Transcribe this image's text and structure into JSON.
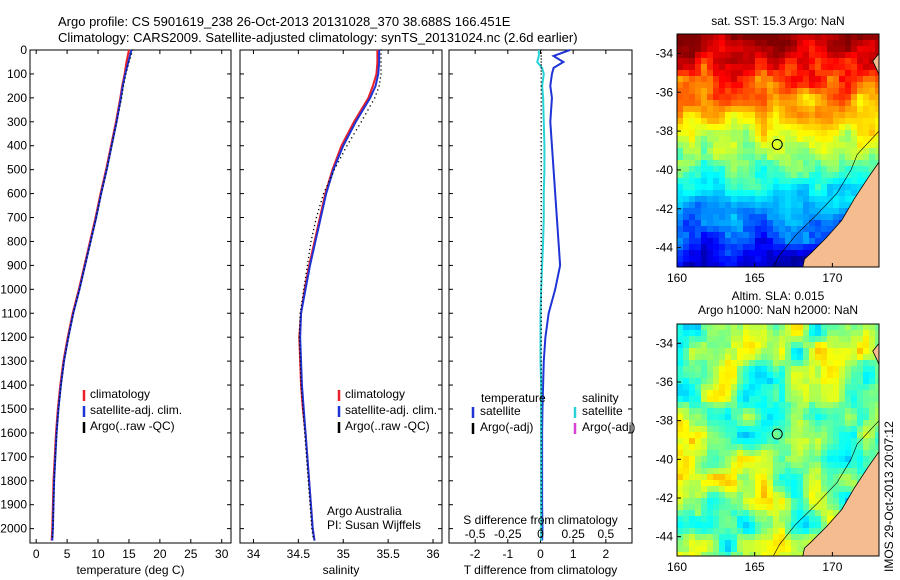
{
  "header": {
    "line1": "Argo profile: CS 5901619_238 26-Oct-2013 20131028_370 38.688S 166.451E",
    "line2": "Climatology: CARS2009. Satellite-adjusted climatology: synTS_20131024.nc (2.6d earlier)"
  },
  "side_text": "IMOS 29-Oct-2013 20:07:12",
  "colors": {
    "climatology": "#e8202a",
    "satellite": "#1f34d6",
    "argo": "#000000",
    "satellite_salinity": "#28d2d6",
    "argo_salinity_adj": "#d640d6",
    "land": "#f5bd8f"
  },
  "chart_data": [
    {
      "id": "temperature",
      "type": "line",
      "xlabel": "temperature (deg C)",
      "xlim": [
        -1,
        31.5
      ],
      "xticks": [
        0,
        5,
        10,
        15,
        20,
        25,
        30
      ],
      "xticklabels": [
        "0",
        "5",
        "10",
        "15",
        "20",
        "25",
        "30"
      ],
      "ylim": [
        0,
        2060
      ],
      "yticks": [
        0,
        100,
        200,
        300,
        400,
        500,
        600,
        700,
        800,
        900,
        1000,
        1100,
        1200,
        1300,
        1400,
        1500,
        1600,
        1700,
        1800,
        1900,
        2000
      ],
      "yticklabels": [
        "0",
        "100",
        "200",
        "300",
        "400",
        "500",
        "600",
        "700",
        "800",
        "900",
        "1000",
        "1100",
        "1200",
        "1300",
        "1400",
        "1500",
        "1600",
        "1700",
        "1800",
        "1900",
        "2000"
      ],
      "depth": [
        0,
        50,
        100,
        150,
        200,
        300,
        400,
        500,
        600,
        700,
        800,
        900,
        1000,
        1100,
        1200,
        1300,
        1400,
        1500,
        1600,
        1700,
        1800,
        1900,
        2000,
        2050
      ],
      "series": [
        {
          "name": "climatology",
          "color": "#e8202a",
          "style": "line",
          "values": [
            15.0,
            14.6,
            14.3,
            13.9,
            13.6,
            12.9,
            12.1,
            11.3,
            10.4,
            9.6,
            8.7,
            7.8,
            6.9,
            5.9,
            5.1,
            4.4,
            3.9,
            3.5,
            3.2,
            3.0,
            2.8,
            2.7,
            2.6,
            2.5
          ]
        },
        {
          "name": "satellite-adj. clim.",
          "color": "#1f34d6",
          "style": "line",
          "values": [
            15.4,
            14.9,
            14.4,
            14.0,
            13.7,
            13.0,
            12.2,
            11.4,
            10.5,
            9.7,
            8.8,
            7.9,
            7.0,
            6.0,
            5.2,
            4.5,
            4.0,
            3.6,
            3.3,
            3.1,
            2.9,
            2.8,
            2.7,
            2.6
          ]
        },
        {
          "name": "Argo(..raw -QC)",
          "color": "#000000",
          "style": "dots",
          "values": [
            15.6,
            15.0,
            14.5,
            14.1,
            13.8,
            13.0,
            12.2,
            11.4,
            10.5,
            9.7,
            8.8,
            7.9,
            7.0,
            6.0,
            5.2,
            4.5,
            4.0,
            3.6,
            3.3,
            3.1,
            2.9,
            2.8,
            2.7,
            2.6
          ]
        }
      ],
      "legend": [
        "climatology",
        "satellite-adj. clim.",
        "Argo(..raw -QC)"
      ]
    },
    {
      "id": "salinity",
      "type": "line",
      "xlabel": "salinity",
      "xlim": [
        33.85,
        36.1
      ],
      "xticks": [
        34,
        34.5,
        35,
        35.5,
        36
      ],
      "xticklabels": [
        "34",
        "34.5",
        "35",
        "35.5",
        "36"
      ],
      "ylim": [
        0,
        2060
      ],
      "depth": [
        0,
        50,
        100,
        150,
        200,
        300,
        400,
        500,
        600,
        700,
        800,
        900,
        1000,
        1100,
        1200,
        1300,
        1400,
        1500,
        1600,
        1700,
        1800,
        1900,
        2000,
        2050
      ],
      "series": [
        {
          "name": "climatology",
          "color": "#e8202a",
          "style": "line",
          "values": [
            35.38,
            35.38,
            35.37,
            35.33,
            35.28,
            35.12,
            34.98,
            34.88,
            34.8,
            34.74,
            34.68,
            34.62,
            34.57,
            34.53,
            34.51,
            34.52,
            34.53,
            34.55,
            34.58,
            34.6,
            34.62,
            34.64,
            34.66,
            34.68
          ]
        },
        {
          "name": "satellite-adj. clim.",
          "color": "#1f34d6",
          "style": "line",
          "values": [
            35.4,
            35.4,
            35.39,
            35.36,
            35.3,
            35.14,
            35.0,
            34.89,
            34.81,
            34.75,
            34.69,
            34.63,
            34.58,
            34.53,
            34.52,
            34.53,
            34.54,
            34.56,
            34.58,
            34.6,
            34.62,
            34.64,
            34.66,
            34.68
          ]
        },
        {
          "name": "Argo(..raw -QC)",
          "color": "#000000",
          "style": "dots",
          "values": [
            35.42,
            35.42,
            35.42,
            35.4,
            35.35,
            35.2,
            35.04,
            34.9,
            34.78,
            34.7,
            34.64,
            34.6,
            34.56,
            34.52,
            34.51,
            34.52,
            34.53,
            34.55,
            34.57,
            34.59,
            34.61,
            34.63,
            34.65,
            34.67
          ]
        }
      ],
      "legend": [
        "climatology",
        "satellite-adj. clim.",
        "Argo(..raw -QC)"
      ],
      "annotation": [
        "Argo Australia",
        "PI: Susan Wijffels"
      ]
    },
    {
      "id": "difference",
      "type": "line",
      "xlabel": "T difference from climatology",
      "top_axis_title": "S difference from climatology",
      "xlim": [
        -2.8,
        2.8
      ],
      "xticks": [
        -2,
        -1,
        0,
        1,
        2
      ],
      "xticklabels": [
        "-2",
        "-1",
        "0",
        "1",
        "2"
      ],
      "top_xticks": [
        -2,
        -1,
        0,
        1,
        2
      ],
      "top_xticklabels": [
        "-0.5",
        "-0.25",
        "0",
        "0.25",
        "0.5"
      ],
      "ylim": [
        0,
        2060
      ],
      "depth": [
        0,
        25,
        50,
        75,
        100,
        150,
        200,
        300,
        400,
        500,
        600,
        700,
        800,
        900,
        1000,
        1100,
        1200,
        1300,
        1400,
        1500,
        1600,
        1700,
        1800,
        1900,
        2000,
        2050
      ],
      "series": [
        {
          "name": "temperature satellite",
          "color": "#1f34d6",
          "style": "line",
          "values": [
            0.9,
            0.4,
            0.7,
            0.4,
            0.35,
            0.3,
            0.35,
            0.3,
            0.35,
            0.4,
            0.45,
            0.5,
            0.55,
            0.6,
            0.45,
            0.25,
            0.15,
            0.1,
            0.08,
            0.06,
            0.05,
            0.05,
            0.05,
            0.05,
            0.06,
            0.05
          ]
        },
        {
          "name": "salinity satellite",
          "color": "#28d2d6",
          "style": "line",
          "values": [
            -0.05,
            -0.05,
            -0.1,
            0.05,
            0.1,
            0.05,
            0.08,
            0.1,
            0.12,
            0.12,
            0.1,
            0.1,
            0.08,
            0.05,
            0.02,
            0.0,
            0.0,
            0.0,
            0.02,
            0.02,
            0.02,
            0.02,
            0.02,
            0.02,
            0.02,
            0.02
          ]
        },
        {
          "name": "Argo(-adj)",
          "color": "#000000",
          "style": "dots",
          "values": [
            0.02,
            0.02,
            0.02,
            0.02,
            0.02,
            0.02,
            0.02,
            0.02,
            0.02,
            0.02,
            0.02,
            0.02,
            0.02,
            0.02,
            0.02,
            0.02,
            0.02,
            0.02,
            0.02,
            0.02,
            0.02,
            0.02,
            0.02,
            0.02,
            0.02,
            0.02
          ]
        }
      ],
      "legend_titles": [
        "temperature",
        "salinity"
      ],
      "legend_temperature": [
        "satellite",
        "Argo(-adj)"
      ],
      "legend_salinity": [
        "satellite",
        "Argo(-adj)"
      ]
    },
    {
      "id": "sst_map",
      "type": "heatmap",
      "title": "sat. SST: 15.3 Argo: NaN",
      "xlim": [
        160,
        173
      ],
      "ylim": [
        -45,
        -33
      ],
      "xticks": [
        160,
        165,
        170
      ],
      "xticklabels": [
        "160",
        "165",
        "170"
      ],
      "yticks": [
        -34,
        -36,
        -38,
        -40,
        -42,
        -44
      ],
      "yticklabels": [
        "-34",
        "-36",
        "-38",
        "-40",
        "-42",
        "-44"
      ],
      "marker": {
        "lon": 166.45,
        "lat": -38.69
      }
    },
    {
      "id": "sla_map",
      "type": "heatmap",
      "title_lines": [
        "Altim. SLA: 0.015",
        "Argo h1000: NaN h2000: NaN"
      ],
      "xlim": [
        160,
        173
      ],
      "ylim": [
        -45,
        -33
      ],
      "xticks": [
        160,
        165,
        170
      ],
      "xticklabels": [
        "160",
        "165",
        "170"
      ],
      "yticks": [
        -34,
        -36,
        -38,
        -40,
        -42,
        -44
      ],
      "yticklabels": [
        "-34",
        "-36",
        "-38",
        "-40",
        "-42",
        "-44"
      ],
      "marker": {
        "lon": 166.45,
        "lat": -38.69
      }
    }
  ]
}
